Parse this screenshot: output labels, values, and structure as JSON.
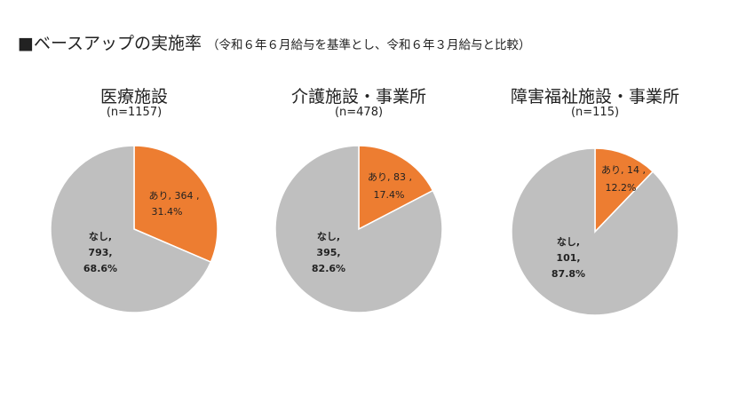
{
  "page": {
    "title_marker": "■",
    "title": "ベースアップの実施率",
    "subtitle": "（令和６年６月給与を基準とし、令和６年３月給与と比較）"
  },
  "colors": {
    "ari": "#ED7D31",
    "nashi": "#BFBFBF"
  },
  "chart_data": [
    {
      "type": "pie",
      "title": "医療施設",
      "n_label": "(n=1157)",
      "slices": [
        {
          "label": "あり",
          "count": 364,
          "percent": 31.4,
          "color": "#ED7D31"
        },
        {
          "label": "なし",
          "count": 793,
          "percent": 68.6,
          "color": "#BFBFBF"
        }
      ]
    },
    {
      "type": "pie",
      "title": "介護施設・事業所",
      "n_label": "(n=478)",
      "slices": [
        {
          "label": "あり",
          "count": 83,
          "percent": 17.4,
          "color": "#ED7D31"
        },
        {
          "label": "なし",
          "count": 395,
          "percent": 82.6,
          "color": "#BFBFBF"
        }
      ]
    },
    {
      "type": "pie",
      "title": "障害福祉施設・事業所",
      "n_label": "(n=115)",
      "slices": [
        {
          "label": "あり",
          "count": 14,
          "percent": 12.2,
          "color": "#ED7D31"
        },
        {
          "label": "なし",
          "count": 101,
          "percent": 87.8,
          "color": "#BFBFBF"
        }
      ]
    }
  ]
}
